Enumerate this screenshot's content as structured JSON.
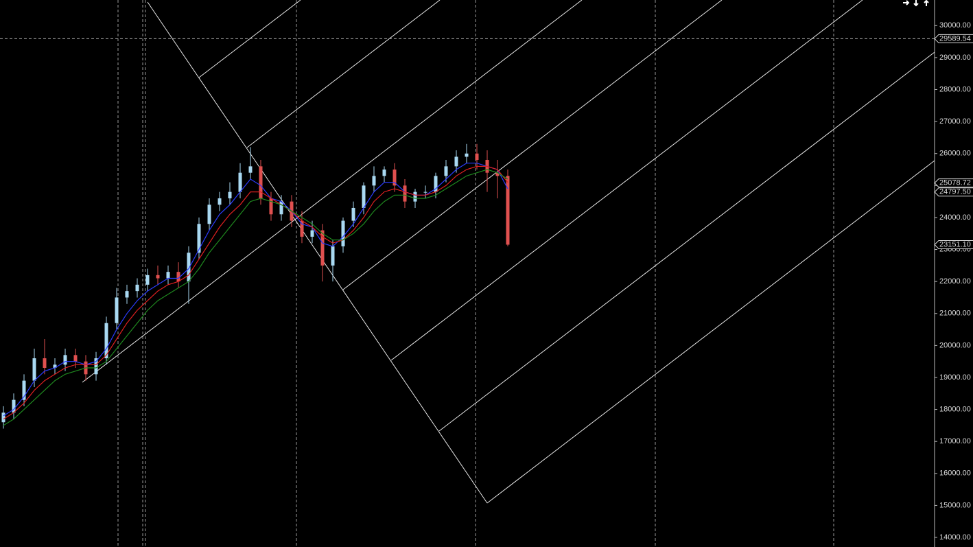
{
  "chart_data": {
    "type": "candlestick",
    "open": [
      17600,
      17900,
      18300,
      18900,
      19600,
      19300,
      19400,
      19700,
      19500,
      19100,
      19600,
      20700,
      21500,
      21700,
      21900,
      22200,
      22100,
      22300,
      22000,
      22900,
      23800,
      24400,
      24600,
      24800,
      25400,
      25600,
      24600,
      24100,
      24500,
      23900,
      23400,
      23600,
      22500,
      23100,
      23900,
      24300,
      25000,
      25300,
      25500,
      25000,
      24500,
      24800,
      24800,
      25300,
      25600,
      25900,
      26000,
      25800,
      25400,
      25300
    ],
    "high": [
      18100,
      18500,
      19100,
      19900,
      20200,
      19600,
      19900,
      19900,
      19700,
      19800,
      20900,
      21800,
      21900,
      22100,
      22400,
      22500,
      22500,
      22600,
      23100,
      24000,
      24600,
      24800,
      25100,
      25700,
      26200,
      25800,
      24800,
      24700,
      24700,
      24200,
      23900,
      23800,
      23300,
      24000,
      24500,
      25100,
      25600,
      25600,
      25700,
      25200,
      24900,
      25000,
      25400,
      25800,
      26100,
      26300,
      26300,
      26100,
      25800,
      25500
    ],
    "low": [
      17400,
      17700,
      18100,
      18700,
      19100,
      19100,
      19200,
      19300,
      18900,
      18900,
      19400,
      20500,
      21300,
      21500,
      21700,
      21900,
      21900,
      21800,
      21300,
      22700,
      23600,
      24200,
      24400,
      24600,
      25200,
      24400,
      23900,
      23900,
      23700,
      23200,
      23200,
      22000,
      22000,
      22900,
      23700,
      24100,
      24800,
      25100,
      24800,
      24300,
      24300,
      24600,
      24600,
      25100,
      25400,
      25700,
      25500,
      24800,
      24600,
      23100
    ],
    "close": [
      17900,
      18300,
      18900,
      19600,
      19300,
      19400,
      19700,
      19500,
      19100,
      19600,
      20700,
      21500,
      21700,
      21900,
      22200,
      22100,
      22300,
      22000,
      22900,
      23800,
      24400,
      24600,
      24800,
      25400,
      25600,
      24600,
      24100,
      24500,
      23900,
      23400,
      23600,
      22500,
      23100,
      23900,
      24300,
      25000,
      25300,
      25500,
      25000,
      24500,
      24800,
      24800,
      25300,
      25600,
      25900,
      26000,
      25800,
      25400,
      25300,
      23151.1
    ],
    "up_color": "#a9d9f2",
    "down_color": "#e0504f",
    "series": [
      {
        "color": "#2b3cff",
        "values": [
          17800,
          18000,
          18400,
          18900,
          19200,
          19300,
          19500,
          19500,
          19400,
          19500,
          19900,
          20500,
          21000,
          21400,
          21700,
          21900,
          22100,
          22100,
          22400,
          23000,
          23600,
          24100,
          24400,
          24800,
          25200,
          25000,
          24600,
          24500,
          24200,
          23800,
          23700,
          23200,
          23100,
          23400,
          23800,
          24300,
          24800,
          25100,
          25100,
          24800,
          24700,
          24700,
          24900,
          25200,
          25500,
          25700,
          25700,
          25600,
          25500,
          24900
        ]
      },
      {
        "color": "#e02020",
        "values": [
          17700,
          17900,
          18200,
          18600,
          18900,
          19100,
          19300,
          19400,
          19400,
          19400,
          19700,
          20200,
          20700,
          21100,
          21400,
          21700,
          21900,
          22000,
          22200,
          22700,
          23200,
          23700,
          24100,
          24400,
          24800,
          24800,
          24600,
          24400,
          24200,
          23900,
          23700,
          23400,
          23200,
          23300,
          23600,
          24000,
          24500,
          24800,
          24900,
          24800,
          24700,
          24700,
          24800,
          25000,
          25300,
          25500,
          25600,
          25600,
          25500,
          25100
        ]
      },
      {
        "color": "#1f8a1f",
        "values": [
          17500,
          17700,
          18000,
          18300,
          18600,
          18900,
          19100,
          19200,
          19300,
          19300,
          19500,
          19900,
          20300,
          20700,
          21100,
          21400,
          21600,
          21800,
          22000,
          22400,
          22900,
          23300,
          23700,
          24100,
          24500,
          24600,
          24500,
          24400,
          24200,
          24000,
          23800,
          23500,
          23300,
          23300,
          23500,
          23800,
          24200,
          24500,
          24700,
          24700,
          24600,
          24600,
          24700,
          24900,
          25100,
          25300,
          25400,
          25500,
          25400,
          25200
        ]
      }
    ],
    "ylim": [
      13700,
      30800
    ],
    "yticks": [
      {
        "value": 30000,
        "label": "30000.00"
      },
      {
        "value": 29000,
        "label": "29000.00"
      },
      {
        "value": 28000,
        "label": "28000.00"
      },
      {
        "value": 27000,
        "label": "27000.00"
      },
      {
        "value": 26000,
        "label": "26000.00"
      },
      {
        "value": 25000,
        "label": "25000.00"
      },
      {
        "value": 24000,
        "label": "24000.00"
      },
      {
        "value": 23000,
        "label": "23000.00"
      },
      {
        "value": 22000,
        "label": "22000.00"
      },
      {
        "value": 21000,
        "label": "21000.00"
      },
      {
        "value": 20000,
        "label": "20000.00"
      },
      {
        "value": 19000,
        "label": "19000.00"
      },
      {
        "value": 18000,
        "label": "18000.00"
      },
      {
        "value": 17000,
        "label": "17000.00"
      },
      {
        "value": 16000,
        "label": "16000.00"
      },
      {
        "value": 15000,
        "label": "15000.00"
      },
      {
        "value": 14000,
        "label": "14000.00"
      }
    ],
    "crosshair": 29589.54,
    "price_markers": [
      25078.72,
      {
        "value": 24797.5,
        "label": "24797.50"
      },
      {
        "value": 23151.1,
        "label": "23151.10"
      }
    ]
  }
}
